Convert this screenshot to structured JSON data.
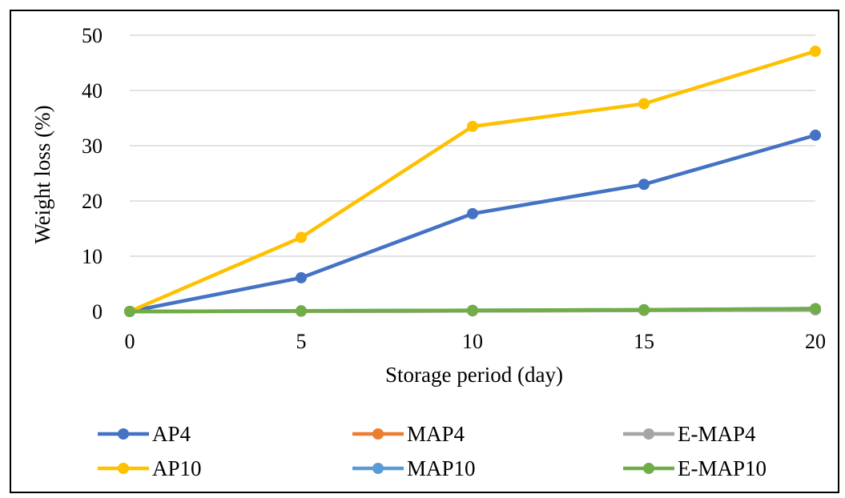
{
  "chart_data": {
    "type": "line",
    "title": "",
    "xlabel": "Storage period (day)",
    "ylabel": "Weight loss (%)",
    "x": [
      0,
      5,
      10,
      15,
      20
    ],
    "xlim": [
      0,
      20
    ],
    "ylim": [
      0,
      50
    ],
    "xticks": [
      "0",
      "5",
      "10",
      "15",
      "20"
    ],
    "yticks": [
      "0",
      "10",
      "20",
      "30",
      "40",
      "50"
    ],
    "grid": "horizontal",
    "legend_position": "bottom",
    "series": [
      {
        "name": "AP4",
        "color": "#4472C4",
        "values": [
          0,
          6.1,
          17.7,
          23.0,
          31.9
        ]
      },
      {
        "name": "MAP4",
        "color": "#ED7D31",
        "values": [
          0,
          0.05,
          0.1,
          0.2,
          0.3
        ]
      },
      {
        "name": "E-MAP4",
        "color": "#A5A5A5",
        "values": [
          0,
          0.05,
          0.1,
          0.2,
          0.3
        ]
      },
      {
        "name": "AP10",
        "color": "#FFC000",
        "values": [
          0,
          13.4,
          33.5,
          37.6,
          47.1
        ]
      },
      {
        "name": "MAP10",
        "color": "#5B9BD5",
        "values": [
          0,
          0.1,
          0.2,
          0.3,
          0.5
        ]
      },
      {
        "name": "E-MAP10",
        "color": "#70AD47",
        "values": [
          0,
          0.1,
          0.2,
          0.3,
          0.5
        ]
      }
    ]
  }
}
